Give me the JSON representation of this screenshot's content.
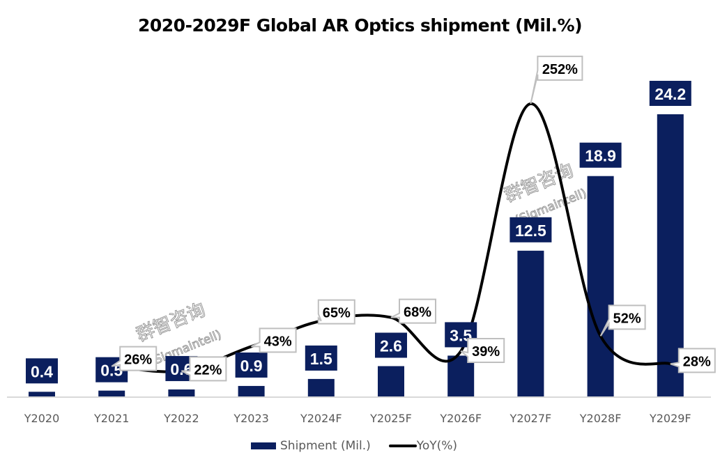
{
  "chart_data": {
    "type": "bar",
    "title": "2020-2029F Global AR Optics shipment (Mil.%)",
    "categories": [
      "Y2020",
      "Y2021",
      "Y2022",
      "Y2023",
      "Y2024F",
      "Y2025F",
      "Y2026F",
      "Y2027F",
      "Y2028F",
      "Y2029F"
    ],
    "series": [
      {
        "name": "Shipment (Mil.)",
        "type": "bar",
        "color": "#0b1f5e",
        "values": [
          0.4,
          0.5,
          0.6,
          0.9,
          1.5,
          2.6,
          3.5,
          12.5,
          18.9,
          24.2
        ],
        "labels": [
          "0.4",
          "0.5",
          "0.6",
          "0.9",
          "1.5",
          "2.6",
          "3.5",
          "12.5",
          "18.9",
          "24.2"
        ]
      },
      {
        "name": "YoY(%)",
        "type": "line",
        "color": "#000000",
        "values": [
          null,
          26,
          22,
          43,
          65,
          68,
          39,
          252,
          52,
          28
        ],
        "labels": [
          "",
          "26%",
          "22%",
          "43%",
          "65%",
          "68%",
          "39%",
          "252%",
          "52%",
          "28%"
        ]
      }
    ],
    "xlabel": "",
    "ylabel": "",
    "ylim": [
      0,
      25
    ],
    "y2lim": [
      0,
      275
    ],
    "grid": false,
    "legend": "bottom",
    "watermark": [
      "群智咨询",
      "(Sigmaintell)"
    ]
  }
}
